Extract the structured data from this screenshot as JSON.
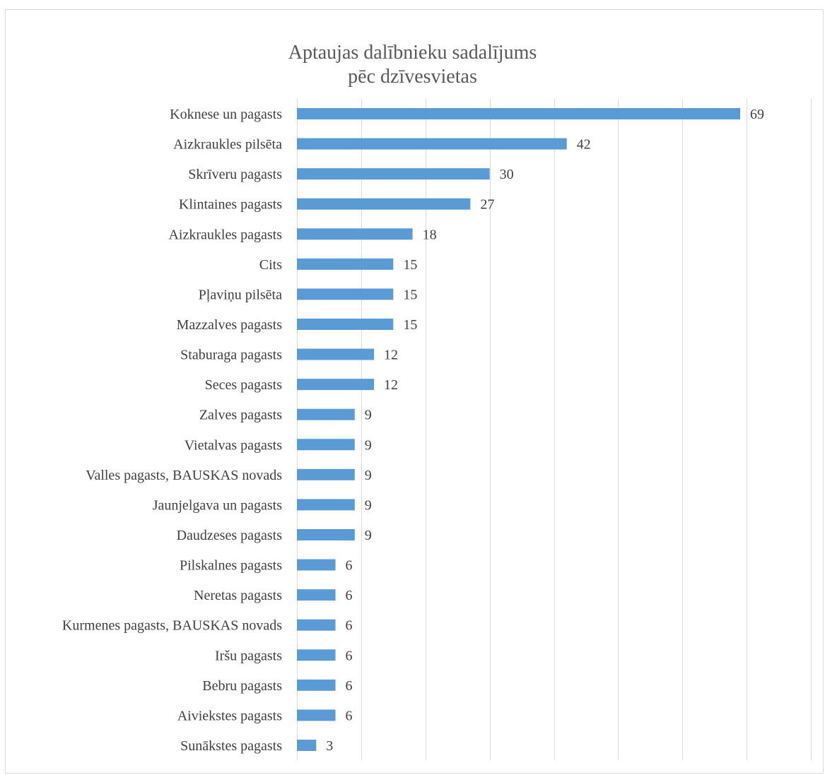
{
  "chart_data": {
    "type": "bar",
    "orientation": "horizontal",
    "title": "Aptaujas dalībnieku sadalījums pēc dzīvesvietas",
    "title_lines": [
      "Aptaujas dalībnieku sadalījums",
      "pēc dzīvesvietas"
    ],
    "categories": [
      "Koknese un pagasts",
      "Aizkraukles pilsēta",
      "Skrīveru pagasts",
      "Klintaines pagasts",
      "Aizkraukles pagasts",
      "Cits",
      "Pļaviņu pilsēta",
      "Mazzalves pagasts",
      "Staburaga pagasts",
      "Seces pagasts",
      "Zalves pagasts",
      "Vietalvas pagasts",
      "Valles pagasts, BAUSKAS novads",
      "Jaunjelgava un pagasts",
      "Daudzeses pagasts",
      "Pilskalnes pagasts",
      "Neretas pagasts",
      "Kurmenes pagasts, BAUSKAS novads",
      "Iršu pagasts",
      "Bebru pagasts",
      "Aiviekstes pagasts",
      "Sunākstes pagasts"
    ],
    "values": [
      69,
      42,
      30,
      27,
      18,
      15,
      15,
      15,
      12,
      12,
      9,
      9,
      9,
      9,
      9,
      6,
      6,
      6,
      6,
      6,
      6,
      3
    ],
    "xlim": [
      0,
      80
    ],
    "grid": true,
    "legend": "none",
    "bar_color": "#5b9bd5",
    "grid_color": "#d9d9d9",
    "text_color": "#404040",
    "title_color": "#595959"
  }
}
